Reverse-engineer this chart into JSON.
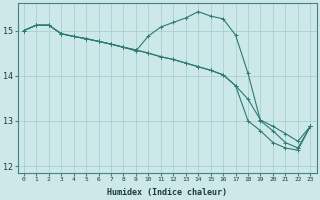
{
  "xlabel": "Humidex (Indice chaleur)",
  "ylabel": "",
  "bg_color": "#cce8e8",
  "grid_color": "#aad0d0",
  "line_color": "#2d7a6e",
  "xlim": [
    -0.5,
    23.5
  ],
  "ylim": [
    11.85,
    15.6
  ],
  "yticks": [
    12,
    13,
    14,
    15
  ],
  "xticks": [
    0,
    1,
    2,
    3,
    4,
    5,
    6,
    7,
    8,
    9,
    10,
    11,
    12,
    13,
    14,
    15,
    16,
    17,
    18,
    19,
    20,
    21,
    22,
    23
  ],
  "series1": [
    15.0,
    15.12,
    15.12,
    14.93,
    14.87,
    14.82,
    14.76,
    14.7,
    14.63,
    14.55,
    14.88,
    15.08,
    15.18,
    15.28,
    15.42,
    15.32,
    15.26,
    14.9,
    14.05,
    13.0,
    12.78,
    12.52,
    12.4,
    12.88
  ],
  "series2": [
    15.0,
    15.12,
    15.12,
    14.93,
    14.87,
    14.82,
    14.76,
    14.7,
    14.63,
    14.57,
    14.5,
    14.42,
    14.36,
    14.28,
    14.2,
    14.12,
    14.02,
    13.78,
    13.48,
    13.02,
    12.88,
    12.72,
    12.55,
    12.88
  ],
  "series3": [
    15.0,
    15.12,
    15.12,
    14.93,
    14.87,
    14.82,
    14.76,
    14.7,
    14.63,
    14.57,
    14.5,
    14.42,
    14.36,
    14.28,
    14.2,
    14.12,
    14.02,
    13.78,
    13.0,
    12.78,
    12.52,
    12.4,
    12.35,
    12.88
  ]
}
